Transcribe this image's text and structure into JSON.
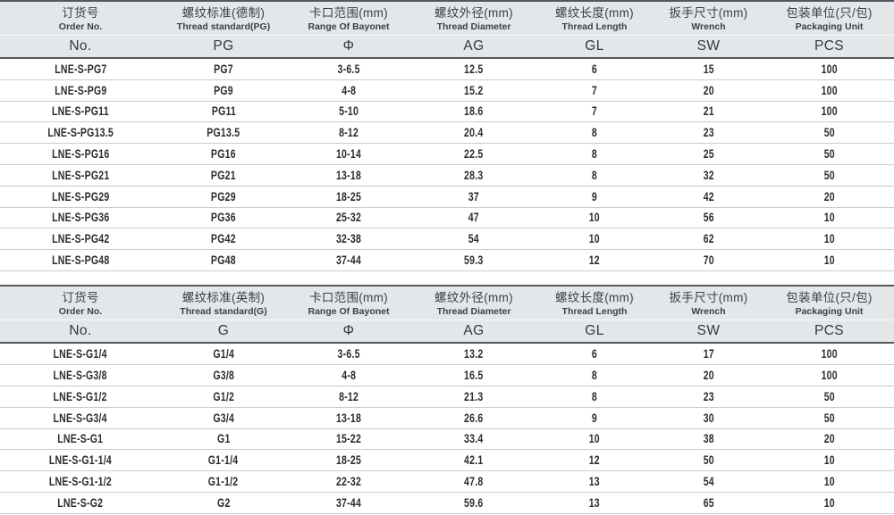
{
  "colors": {
    "header_bg": "#e4e7ea",
    "header_border": "#54585d",
    "row_line": "#caccce",
    "header_text": "#3b4046",
    "data_text": "#2c2c2c"
  },
  "tables": [
    {
      "id": "pg-table",
      "columns": [
        {
          "zh": "订货号",
          "en": "Order No.",
          "sym": "No."
        },
        {
          "zh": "螺纹标准(德制)",
          "en": "Thread standard(PG)",
          "sym": "PG"
        },
        {
          "zh": "卡口范围(mm)",
          "en": "Range Of Bayonet",
          "sym": "Φ"
        },
        {
          "zh": "螺纹外径(mm)",
          "en": "Thread Diameter",
          "sym": "AG"
        },
        {
          "zh": "螺纹长度(mm)",
          "en": "Thread Length",
          "sym": "GL"
        },
        {
          "zh": "扳手尺寸(mm)",
          "en": "Wrench",
          "sym": "SW"
        },
        {
          "zh": "包装单位(只/包)",
          "en": "Packaging Unit",
          "sym": "PCS"
        }
      ],
      "rows": [
        [
          "LNE-S-PG7",
          "PG7",
          "3-6.5",
          "12.5",
          "6",
          "15",
          "100"
        ],
        [
          "LNE-S-PG9",
          "PG9",
          "4-8",
          "15.2",
          "7",
          "20",
          "100"
        ],
        [
          "LNE-S-PG11",
          "PG11",
          "5-10",
          "18.6",
          "7",
          "21",
          "100"
        ],
        [
          "LNE-S-PG13.5",
          "PG13.5",
          "8-12",
          "20.4",
          "8",
          "23",
          "50"
        ],
        [
          "LNE-S-PG16",
          "PG16",
          "10-14",
          "22.5",
          "8",
          "25",
          "50"
        ],
        [
          "LNE-S-PG21",
          "PG21",
          "13-18",
          "28.3",
          "8",
          "32",
          "50"
        ],
        [
          "LNE-S-PG29",
          "PG29",
          "18-25",
          "37",
          "9",
          "42",
          "20"
        ],
        [
          "LNE-S-PG36",
          "PG36",
          "25-32",
          "47",
          "10",
          "56",
          "10"
        ],
        [
          "LNE-S-PG42",
          "PG42",
          "32-38",
          "54",
          "10",
          "62",
          "10"
        ],
        [
          "LNE-S-PG48",
          "PG48",
          "37-44",
          "59.3",
          "12",
          "70",
          "10"
        ]
      ]
    },
    {
      "id": "g-table",
      "columns": [
        {
          "zh": "订货号",
          "en": "Order No.",
          "sym": "No."
        },
        {
          "zh": "螺纹标准(英制)",
          "en": "Thread standard(G)",
          "sym": "G"
        },
        {
          "zh": "卡口范围(mm)",
          "en": "Range Of Bayonet",
          "sym": "Φ"
        },
        {
          "zh": "螺纹外径(mm)",
          "en": "Thread Diameter",
          "sym": "AG"
        },
        {
          "zh": "螺纹长度(mm)",
          "en": "Thread Length",
          "sym": "GL"
        },
        {
          "zh": "扳手尺寸(mm)",
          "en": "Wrench",
          "sym": "SW"
        },
        {
          "zh": "包装单位(只/包)",
          "en": "Packaging Unit",
          "sym": "PCS"
        }
      ],
      "rows": [
        [
          "LNE-S-G1/4",
          "G1/4",
          "3-6.5",
          "13.2",
          "6",
          "17",
          "100"
        ],
        [
          "LNE-S-G3/8",
          "G3/8",
          "4-8",
          "16.5",
          "8",
          "20",
          "100"
        ],
        [
          "LNE-S-G1/2",
          "G1/2",
          "8-12",
          "21.3",
          "8",
          "23",
          "50"
        ],
        [
          "LNE-S-G3/4",
          "G3/4",
          "13-18",
          "26.6",
          "9",
          "30",
          "50"
        ],
        [
          "LNE-S-G1",
          "G1",
          "15-22",
          "33.4",
          "10",
          "38",
          "20"
        ],
        [
          "LNE-S-G1-1/4",
          "G1-1/4",
          "18-25",
          "42.1",
          "12",
          "50",
          "10"
        ],
        [
          "LNE-S-G1-1/2",
          "G1-1/2",
          "22-32",
          "47.8",
          "13",
          "54",
          "10"
        ],
        [
          "LNE-S-G2",
          "G2",
          "37-44",
          "59.6",
          "13",
          "65",
          "10"
        ]
      ]
    }
  ]
}
